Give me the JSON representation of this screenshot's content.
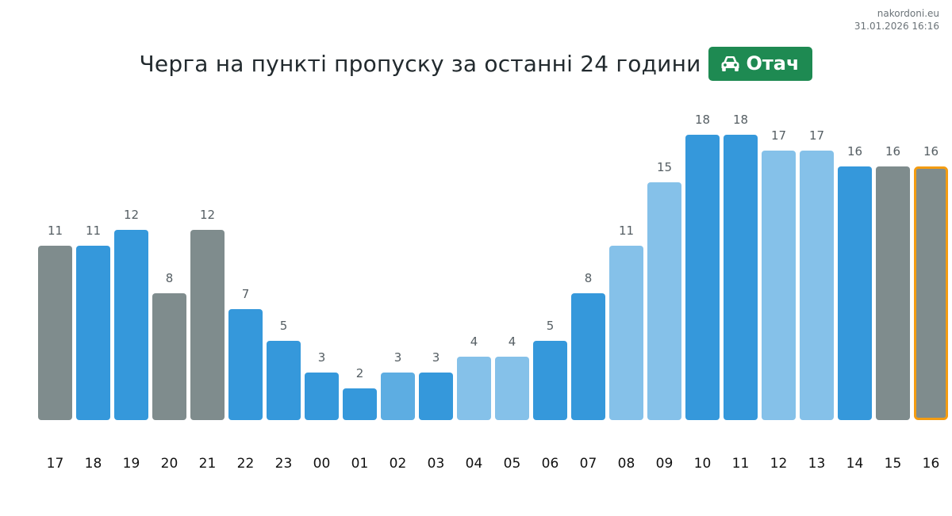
{
  "header": {
    "source_site": "nakordoni.eu",
    "timestamp": "31.01.2026 16:16",
    "title": "Черга на пункті пропуску за останні 24 години",
    "badge_label": "Отач",
    "badge_icon": "car-icon"
  },
  "colors": {
    "badge": "#1e8a52",
    "dark_blue": "#3598db",
    "light_blue": "#85c1e9",
    "mid_blue": "#5dade2",
    "gray": "#7f8c8d",
    "highlight_outline": "#f39c12",
    "value_label": "#555e63",
    "tick_label": "#111111"
  },
  "chart_data": {
    "type": "bar",
    "title": "Черга на пункті пропуску за останні 24 години",
    "xlabel": "",
    "ylabel": "",
    "ylim": [
      0,
      18
    ],
    "grid": false,
    "categories": [
      "17",
      "18",
      "19",
      "20",
      "21",
      "22",
      "23",
      "00",
      "01",
      "02",
      "03",
      "04",
      "05",
      "06",
      "07",
      "08",
      "09",
      "10",
      "11",
      "12",
      "13",
      "14",
      "15",
      "16"
    ],
    "values": [
      11,
      11,
      12,
      8,
      12,
      7,
      5,
      3,
      2,
      3,
      3,
      4,
      4,
      5,
      8,
      11,
      15,
      18,
      18,
      17,
      17,
      16,
      16,
      16
    ],
    "bar_colors": [
      "gray",
      "dark_blue",
      "dark_blue",
      "gray",
      "gray",
      "dark_blue",
      "dark_blue",
      "dark_blue",
      "dark_blue",
      "mid_blue",
      "dark_blue",
      "light_blue",
      "light_blue",
      "dark_blue",
      "dark_blue",
      "light_blue",
      "light_blue",
      "dark_blue",
      "dark_blue",
      "light_blue",
      "light_blue",
      "dark_blue",
      "gray",
      "gray"
    ],
    "highlighted_category": "16"
  }
}
